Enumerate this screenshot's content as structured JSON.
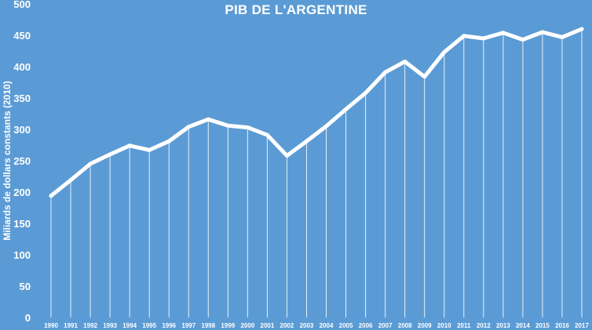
{
  "chart_data": {
    "type": "line",
    "title": "PIB DE L'ARGENTINE",
    "xlabel": "",
    "ylabel": "Miliards de dollars constants (2010)",
    "ylim": [
      0,
      500
    ],
    "yticks": [
      0,
      50,
      100,
      150,
      200,
      250,
      300,
      350,
      400,
      450,
      500
    ],
    "categories": [
      "1990",
      "1991",
      "1992",
      "1993",
      "1994",
      "1995",
      "1996",
      "1997",
      "1998",
      "1999",
      "2000",
      "2001",
      "2002",
      "2003",
      "2004",
      "2005",
      "2006",
      "2007",
      "2008",
      "2009",
      "2010",
      "2011",
      "2012",
      "2013",
      "2014",
      "2015",
      "2016",
      "2017"
    ],
    "series": [
      {
        "values": [
          194,
          219,
          245,
          260,
          274,
          267,
          281,
          304,
          316,
          306,
          303,
          291,
          258,
          281,
          305,
          332,
          358,
          391,
          408,
          384,
          423,
          449,
          445,
          454,
          443,
          455,
          447,
          460
        ]
      }
    ],
    "grid": "vertical drop lines",
    "colors": {
      "background": "#5b9bd5",
      "line": "#ffffff",
      "text": "#ffffff"
    }
  }
}
